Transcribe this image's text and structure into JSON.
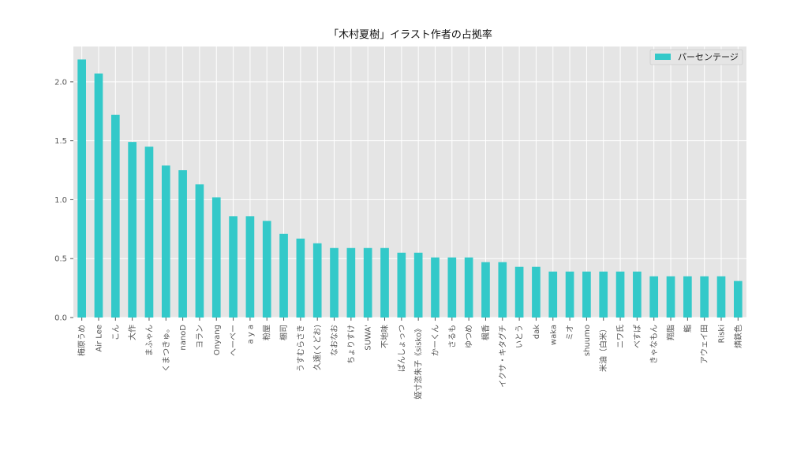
{
  "chart_data": {
    "type": "bar",
    "title": "「木村夏樹」イラスト作者の占拠率",
    "xlabel": "",
    "ylabel": "",
    "ylim": [
      0,
      2.3
    ],
    "yticks": [
      "0.0",
      "0.5",
      "1.0",
      "1.5",
      "2.0"
    ],
    "grid": true,
    "legend_position": "top-right",
    "categories": [
      "梅原うめ",
      "Air Lee",
      "こん",
      "大作",
      "まふゃん",
      "くまつきゅ。",
      "nanoD",
      "ヨラン",
      "Onyang",
      "へーベー",
      "a y a",
      "粉屋",
      "梱司",
      "うすむらさき",
      "久遠(くどお)",
      "なおなお",
      "ちょりすけ",
      "SUWA'",
      "不地味",
      "ぱんしょっつ",
      "姫寸恣朱子《sisko》",
      "かーくん",
      "さるも",
      "ゆつめ",
      "楓香",
      "イクサ・キタグチ",
      "いとう",
      "dak",
      "waka",
      "ミオ",
      "shuumo",
      "米油（白米）",
      "ニワ氏",
      "べすぱ",
      "きゃなもん",
      "翔脂",
      "鮨",
      "アウェイ田",
      "Riski",
      "燐鉄色"
    ],
    "series": [
      {
        "name": "パーセンテージ",
        "color": "#33c9c9",
        "values": [
          2.19,
          2.07,
          1.72,
          1.49,
          1.45,
          1.29,
          1.25,
          1.13,
          1.02,
          0.86,
          0.86,
          0.82,
          0.71,
          0.67,
          0.63,
          0.59,
          0.59,
          0.59,
          0.59,
          0.55,
          0.55,
          0.51,
          0.51,
          0.51,
          0.47,
          0.47,
          0.43,
          0.43,
          0.39,
          0.39,
          0.39,
          0.39,
          0.39,
          0.39,
          0.35,
          0.35,
          0.35,
          0.35,
          0.35,
          0.31
        ]
      }
    ]
  }
}
